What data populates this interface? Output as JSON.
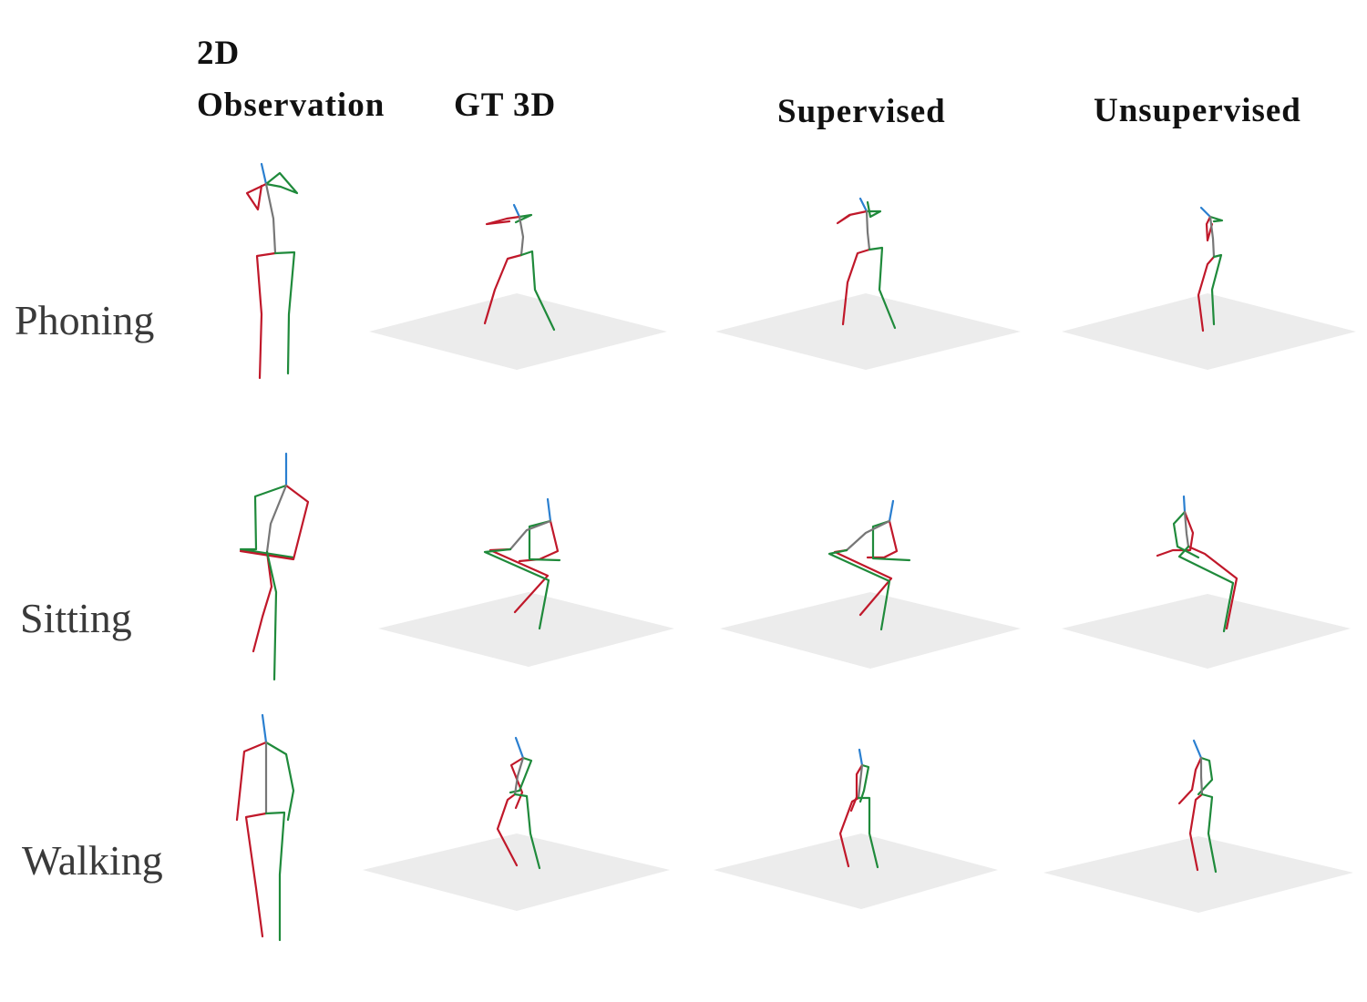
{
  "column_headers": {
    "observation_2d_line1": "2D",
    "observation_2d_line2": "Observation",
    "gt_3d": "GT 3D",
    "supervised": "Supervised",
    "unsupervised": "Unsupervised"
  },
  "row_labels": {
    "phoning": "Phoning",
    "sitting": "Sitting",
    "walking": "Walking"
  },
  "colors": {
    "right_limb": "#c0182a",
    "left_limb": "#1f8a3b",
    "spine": "#777777",
    "head": "#2a7fd0",
    "ground_plane": "#ececec"
  },
  "icons": {
    "limb_colors_meaning": [
      "right-limb",
      "left-limb",
      "spine",
      "head"
    ]
  }
}
